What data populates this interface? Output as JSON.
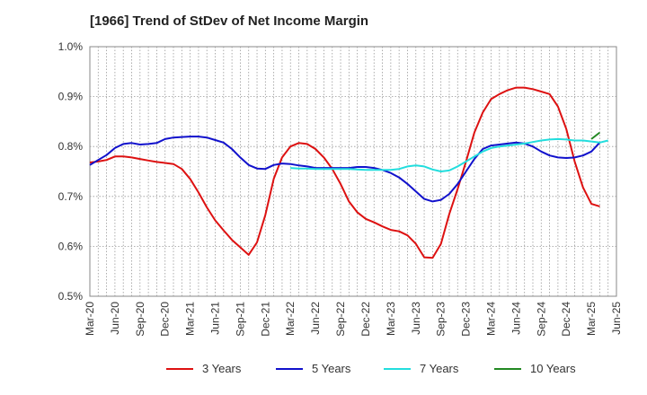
{
  "chart_data": {
    "type": "line",
    "title": "[1966]  Trend of StDev of Net Income Margin",
    "xlabel": "",
    "ylabel": "",
    "ylim": [
      0.5,
      1.0
    ],
    "yticks": [
      "0.5%",
      "0.6%",
      "0.7%",
      "0.8%",
      "0.9%",
      "1.0%"
    ],
    "ytick_values": [
      0.5,
      0.6,
      0.7,
      0.8,
      0.9,
      1.0
    ],
    "xticks": [
      "Mar-20",
      "Jun-20",
      "Sep-20",
      "Dec-20",
      "Mar-21",
      "Jun-21",
      "Sep-21",
      "Dec-21",
      "Mar-22",
      "Jun-22",
      "Sep-22",
      "Dec-22",
      "Mar-23",
      "Jun-23",
      "Sep-23",
      "Dec-23",
      "Mar-24",
      "Jun-24",
      "Sep-24",
      "Dec-24",
      "Mar-25",
      "Jun-25"
    ],
    "grid": true,
    "legend_position": "bottom",
    "series": [
      {
        "name": "3 Years",
        "color": "#dd1111",
        "start_month_index": 0,
        "values": [
          0.768,
          0.77,
          0.773,
          0.78,
          0.78,
          0.778,
          0.775,
          0.772,
          0.769,
          0.767,
          0.765,
          0.755,
          0.735,
          0.708,
          0.678,
          0.652,
          0.632,
          0.613,
          0.598,
          0.583,
          0.608,
          0.663,
          0.735,
          0.778,
          0.8,
          0.807,
          0.805,
          0.795,
          0.778,
          0.755,
          0.725,
          0.69,
          0.668,
          0.655,
          0.648,
          0.64,
          0.633,
          0.63,
          0.622,
          0.605,
          0.578,
          0.577,
          0.605,
          0.665,
          0.715,
          0.77,
          0.828,
          0.868,
          0.895,
          0.905,
          0.913,
          0.918,
          0.918,
          0.915,
          0.91,
          0.905,
          0.88,
          0.835,
          0.77,
          0.718,
          0.685,
          0.68
        ]
      },
      {
        "name": "5 Years",
        "color": "#1111cc",
        "start_month_index": 0,
        "values": [
          0.763,
          0.773,
          0.783,
          0.797,
          0.805,
          0.807,
          0.804,
          0.805,
          0.807,
          0.815,
          0.818,
          0.819,
          0.82,
          0.82,
          0.818,
          0.813,
          0.808,
          0.795,
          0.778,
          0.763,
          0.756,
          0.755,
          0.763,
          0.766,
          0.765,
          0.762,
          0.76,
          0.757,
          0.757,
          0.757,
          0.757,
          0.757,
          0.759,
          0.759,
          0.757,
          0.753,
          0.747,
          0.738,
          0.725,
          0.71,
          0.695,
          0.69,
          0.693,
          0.705,
          0.725,
          0.75,
          0.775,
          0.795,
          0.802,
          0.804,
          0.806,
          0.808,
          0.806,
          0.8,
          0.79,
          0.782,
          0.778,
          0.777,
          0.778,
          0.782,
          0.79,
          0.808
        ]
      },
      {
        "name": "7 Years",
        "color": "#22dddd",
        "start_month_index": 24,
        "values": [
          0.757,
          0.756,
          0.756,
          0.755,
          0.755,
          0.755,
          0.755,
          0.755,
          0.754,
          0.753,
          0.753,
          0.753,
          0.753,
          0.755,
          0.76,
          0.762,
          0.76,
          0.754,
          0.75,
          0.752,
          0.76,
          0.77,
          0.78,
          0.79,
          0.797,
          0.8,
          0.802,
          0.804,
          0.806,
          0.809,
          0.812,
          0.814,
          0.815,
          0.814,
          0.812,
          0.812,
          0.81,
          0.808,
          0.812
        ]
      },
      {
        "name": "10 Years",
        "color": "#228822",
        "start_month_index": 60,
        "values": [
          0.815,
          0.828
        ]
      }
    ]
  }
}
